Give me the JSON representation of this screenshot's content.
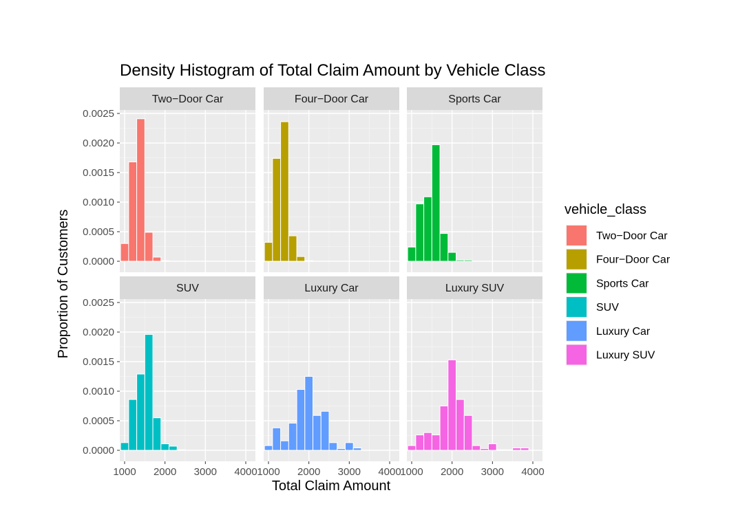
{
  "chart_data": {
    "type": "bar",
    "title": "Density Histogram of Total Claim Amount by Vehicle Class",
    "xlabel": "Total Claim Amount",
    "ylabel": "Proportion of Customers",
    "xlim": [
      900,
      4000
    ],
    "ylim": [
      0,
      0.0025
    ],
    "x_ticks": [
      1000,
      2000,
      3000,
      4000
    ],
    "y_ticks": [
      0.0,
      0.0005,
      0.001,
      0.0015,
      0.002,
      0.0025
    ],
    "y_tick_labels": [
      "0.0000",
      "0.0005",
      "0.0010",
      "0.0015",
      "0.0020",
      "0.0025"
    ],
    "bin_width": 200,
    "grid": true,
    "legend": {
      "title": "vehicle_class",
      "position": "right",
      "entries": [
        "Two-Door Car",
        "Four-Door Car",
        "Sports Car",
        "SUV",
        "Luxury Car",
        "Luxury SUV"
      ]
    },
    "panels": [
      {
        "name": "Two-Door Car",
        "strip_label": "Two−Door Car",
        "color": "#F8766D",
        "bins": [
          {
            "x": 1000,
            "y": 0.0003
          },
          {
            "x": 1200,
            "y": 0.00168
          },
          {
            "x": 1400,
            "y": 0.00241
          },
          {
            "x": 1600,
            "y": 0.00049
          },
          {
            "x": 1800,
            "y": 7e-05
          },
          {
            "x": 2000,
            "y": 1e-05
          }
        ]
      },
      {
        "name": "Four-Door Car",
        "strip_label": "Four−Door Car",
        "color": "#B79F00",
        "bins": [
          {
            "x": 1000,
            "y": 0.00032
          },
          {
            "x": 1200,
            "y": 0.00174
          },
          {
            "x": 1400,
            "y": 0.00236
          },
          {
            "x": 1600,
            "y": 0.00043
          },
          {
            "x": 1800,
            "y": 8e-05
          },
          {
            "x": 2000,
            "y": 1e-05
          }
        ]
      },
      {
        "name": "Sports Car",
        "strip_label": "Sports Car",
        "color": "#00BA38",
        "bins": [
          {
            "x": 1000,
            "y": 0.00024
          },
          {
            "x": 1200,
            "y": 0.00097
          },
          {
            "x": 1400,
            "y": 0.00109
          },
          {
            "x": 1600,
            "y": 0.00197
          },
          {
            "x": 1800,
            "y": 0.00047
          },
          {
            "x": 2000,
            "y": 0.00015
          },
          {
            "x": 2200,
            "y": 2e-05
          },
          {
            "x": 2400,
            "y": 2e-05
          }
        ]
      },
      {
        "name": "SUV",
        "strip_label": "SUV",
        "color": "#00BFC4",
        "bins": [
          {
            "x": 1000,
            "y": 0.00013
          },
          {
            "x": 1200,
            "y": 0.00086
          },
          {
            "x": 1400,
            "y": 0.00129
          },
          {
            "x": 1600,
            "y": 0.00196
          },
          {
            "x": 1800,
            "y": 0.00055
          },
          {
            "x": 2000,
            "y": 0.00011
          },
          {
            "x": 2200,
            "y": 7e-05
          },
          {
            "x": 2400,
            "y": 1e-05
          }
        ]
      },
      {
        "name": "Luxury Car",
        "strip_label": "Luxury Car",
        "color": "#619CFF",
        "bins": [
          {
            "x": 1000,
            "y": 8e-05
          },
          {
            "x": 1200,
            "y": 0.00038
          },
          {
            "x": 1400,
            "y": 0.00016
          },
          {
            "x": 1600,
            "y": 0.00046
          },
          {
            "x": 1800,
            "y": 0.00103
          },
          {
            "x": 2000,
            "y": 0.00125
          },
          {
            "x": 2200,
            "y": 0.00059
          },
          {
            "x": 2400,
            "y": 0.00066
          },
          {
            "x": 2600,
            "y": 0.00013
          },
          {
            "x": 2800,
            "y": 3e-05
          },
          {
            "x": 3000,
            "y": 0.00013
          },
          {
            "x": 3200,
            "y": 4e-05
          }
        ]
      },
      {
        "name": "Luxury SUV",
        "strip_label": "Luxury SUV",
        "color": "#F564E3",
        "bins": [
          {
            "x": 1000,
            "y": 8e-05
          },
          {
            "x": 1200,
            "y": 0.00026
          },
          {
            "x": 1400,
            "y": 0.0003
          },
          {
            "x": 1600,
            "y": 0.00026
          },
          {
            "x": 1800,
            "y": 0.00075
          },
          {
            "x": 2000,
            "y": 0.00153
          },
          {
            "x": 2200,
            "y": 0.00086
          },
          {
            "x": 2400,
            "y": 0.00059
          },
          {
            "x": 2600,
            "y": 8e-05
          },
          {
            "x": 2800,
            "y": 3e-05
          },
          {
            "x": 3000,
            "y": 0.00011
          },
          {
            "x": 3200,
            "y": 1e-05
          },
          {
            "x": 3400,
            "y": 1e-05
          },
          {
            "x": 3600,
            "y": 4e-05
          },
          {
            "x": 3800,
            "y": 4e-05
          }
        ]
      }
    ]
  }
}
